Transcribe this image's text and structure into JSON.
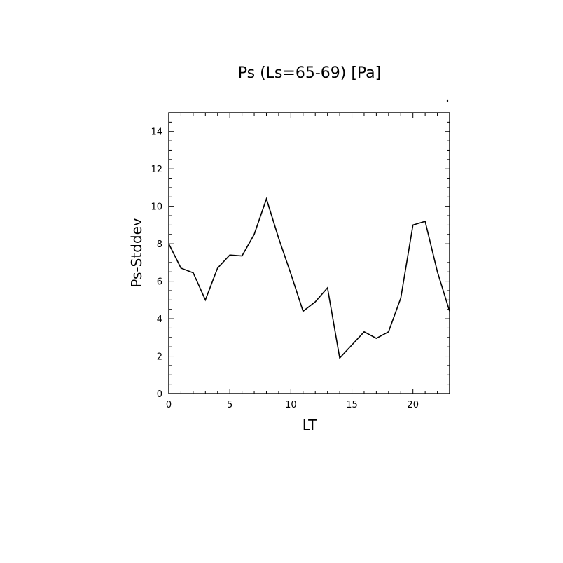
{
  "chart_data": {
    "type": "line",
    "title": "Ps (Ls=65-69) [Pa]",
    "xlabel": "LT",
    "ylabel": "Ps-Stddev",
    "xlim": [
      0,
      23
    ],
    "ylim": [
      0,
      15
    ],
    "xticks": [
      0,
      5,
      10,
      15,
      20
    ],
    "yticks": [
      0,
      2,
      4,
      6,
      8,
      10,
      12,
      14
    ],
    "grid": false,
    "series": [
      {
        "x": [
          0,
          1,
          2,
          3,
          4,
          5,
          6,
          7,
          8,
          9,
          10,
          11,
          12,
          13,
          14,
          15,
          16,
          17,
          18,
          19,
          20,
          21,
          22,
          23
        ],
        "values": [
          8.0,
          6.7,
          6.45,
          5.0,
          6.7,
          7.4,
          7.35,
          8.5,
          10.4,
          8.3,
          6.4,
          4.4,
          4.9,
          5.65,
          1.9,
          2.6,
          3.3,
          2.95,
          3.3,
          5.1,
          9.0,
          9.2,
          6.5,
          4.4
        ]
      }
    ]
  }
}
